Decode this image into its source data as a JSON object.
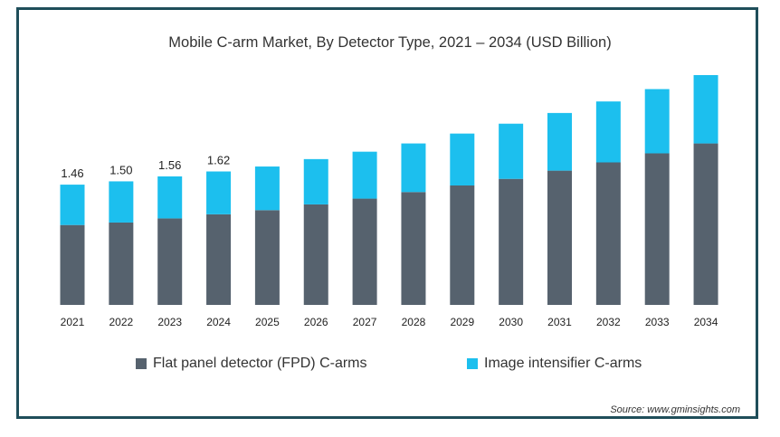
{
  "chart_data": {
    "type": "bar",
    "stacked": true,
    "title": "Mobile C-arm Market, By Detector Type, 2021 – 2034 (USD Billion)",
    "categories": [
      "2021",
      "2022",
      "2023",
      "2024",
      "2025",
      "2026",
      "2027",
      "2028",
      "2029",
      "2030",
      "2031",
      "2032",
      "2033",
      "2034"
    ],
    "series": [
      {
        "name": "Flat panel detector (FPD) C-arms",
        "color": "#56626e",
        "values": [
          0.97,
          1.0,
          1.05,
          1.1,
          1.15,
          1.22,
          1.29,
          1.37,
          1.45,
          1.53,
          1.63,
          1.73,
          1.84,
          1.96
        ]
      },
      {
        "name": "Image intensifier C-arms",
        "color": "#1cbfee",
        "values": [
          0.49,
          0.5,
          0.51,
          0.52,
          0.53,
          0.55,
          0.57,
          0.59,
          0.63,
          0.67,
          0.7,
          0.74,
          0.78,
          0.83
        ]
      }
    ],
    "data_labels": [
      "1.46",
      "1.50",
      "1.56",
      "1.62"
    ],
    "ylim": [
      0,
      2.79
    ],
    "legend_position": "bottom",
    "grid": false
  },
  "source": "Source: www.gminsights.com"
}
